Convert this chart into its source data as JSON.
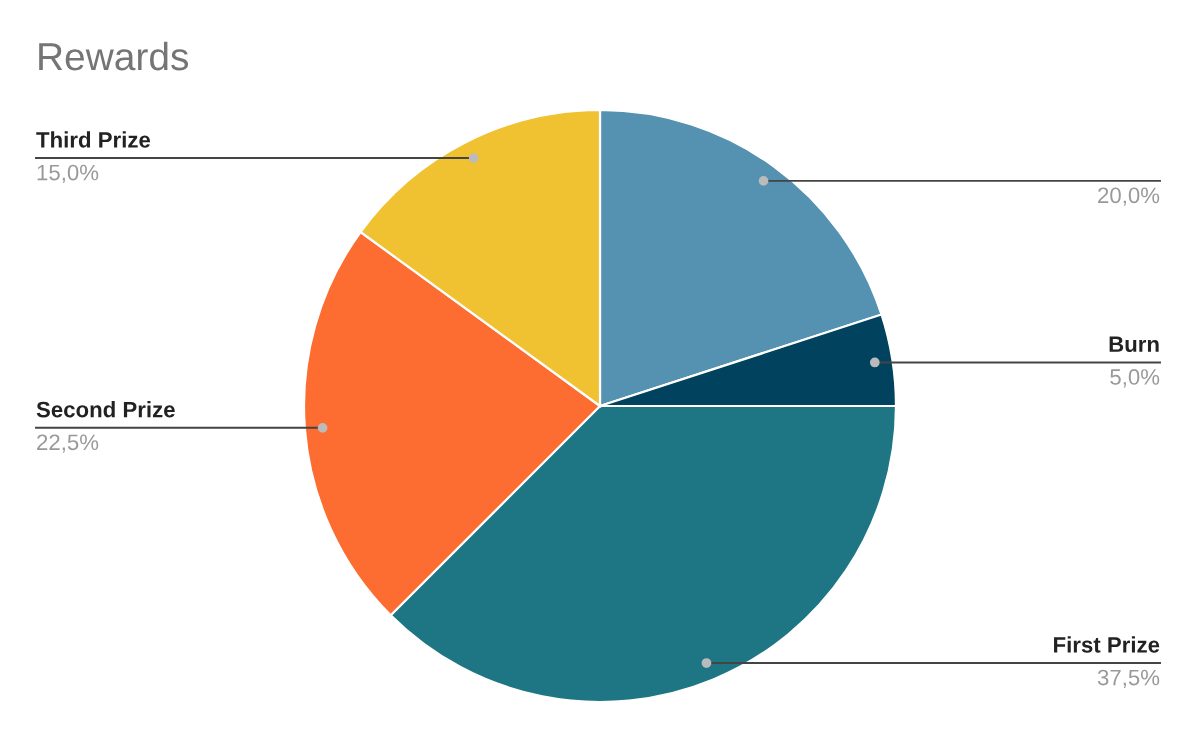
{
  "chart_data": {
    "type": "pie",
    "title": "Rewards",
    "categories": [
      null,
      "Burn",
      "First Prize",
      "Second Prize",
      "Third Prize"
    ],
    "values": [
      20.0,
      5.0,
      37.5,
      22.5,
      15.0
    ],
    "value_labels": [
      "20,0%",
      "5,0%",
      "37,5%",
      "22,5%",
      "15,0%"
    ],
    "colors": [
      "#5591b0",
      "#01425f",
      "#1e7685",
      "#fd6c30",
      "#f0c232"
    ],
    "legend": false
  }
}
